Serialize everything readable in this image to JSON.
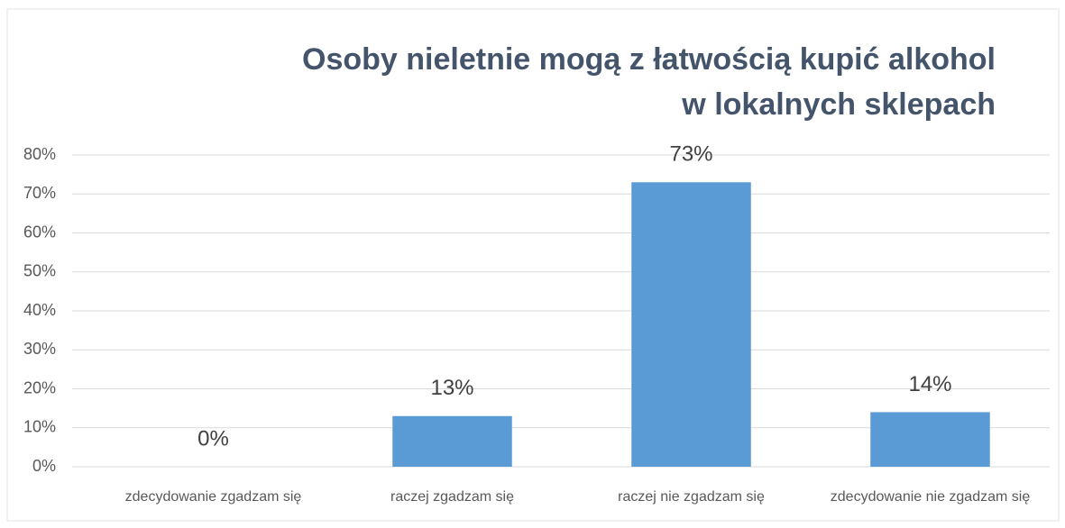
{
  "chart_data": {
    "type": "bar",
    "title": [
      "Osoby nieletnie mogą z łatwością kupić alkohol",
      "w lokalnych sklepach"
    ],
    "categories": [
      "zdecydowanie zgadzam się",
      "raczej zgadzam się",
      "raczej nie zgadzam się",
      "zdecydowanie nie zgadzam się"
    ],
    "values": [
      0,
      13,
      73,
      14
    ],
    "value_labels": [
      "0%",
      "13%",
      "73%",
      "14%"
    ],
    "color": "#5b9bd5",
    "ylim": [
      0,
      80
    ],
    "yticks": [
      {
        "value": 0,
        "label": "0%"
      },
      {
        "value": 10,
        "label": "10%"
      },
      {
        "value": 20,
        "label": "20%"
      },
      {
        "value": 30,
        "label": "30%"
      },
      {
        "value": 40,
        "label": "40%"
      },
      {
        "value": 50,
        "label": "50%"
      },
      {
        "value": 60,
        "label": "60%"
      },
      {
        "value": 70,
        "label": "70%"
      },
      {
        "value": 80,
        "label": "80%"
      }
    ],
    "grid": true
  }
}
